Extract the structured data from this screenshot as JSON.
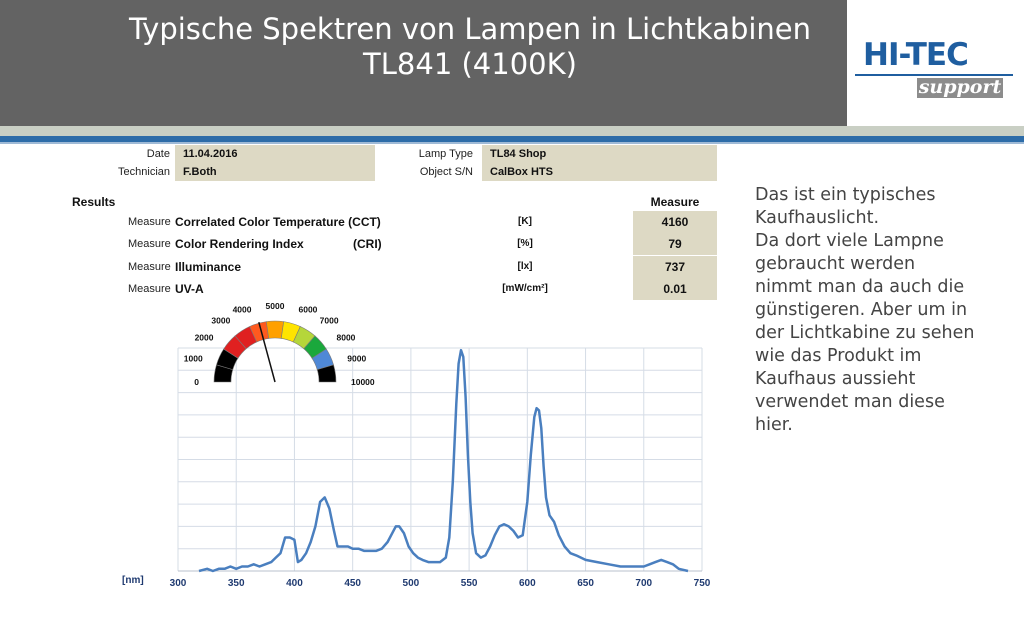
{
  "slide": {
    "title_line1": "Typische Spektren von Lampen in Lichtkabinen",
    "title_line2": "TL841 (4100K)",
    "logo_text": "HI-TEC",
    "logo_subtext": "support",
    "description": [
      "Das ist ein typisches",
      "Kaufhauslicht.",
      "Da dort viele Lampne",
      "gebraucht werden",
      "nimmt man da auch die",
      "günstigeren. Aber um in",
      "der Lichtkabine zu sehen",
      "wie das Produkt im",
      "Kaufhaus aussieht",
      "verwendet man diese",
      "hier."
    ]
  },
  "report": {
    "date_label": "Date",
    "date_value": "11.04.2016",
    "technician_label": "Technician",
    "technician_value": "F.Both",
    "lamp_type_label": "Lamp Type",
    "lamp_type_value": "TL84 Shop",
    "object_label": "Object S/N",
    "object_value": "CalBox HTS",
    "results_label": "Results",
    "measure_header": "Measure",
    "rows": [
      {
        "label": "Measure",
        "name": "Correlated Color Temperature (CCT)",
        "unit": "[K]",
        "value": "4160"
      },
      {
        "label": "Measure",
        "name": "Color Rendering Index",
        "name_suffix": "(CRI)",
        "unit": "[%]",
        "value": "79"
      },
      {
        "label": "Measure",
        "name": "Illuminance",
        "unit": "[lx]",
        "value": "737"
      },
      {
        "label": "Measure",
        "name": "UV-A",
        "unit": "[mW/cm²]",
        "value": "0.01"
      }
    ]
  },
  "gauge": {
    "tick_labels": [
      "0",
      "1000",
      "2000",
      "3000",
      "4000",
      "5000",
      "6000",
      "7000",
      "8000",
      "9000",
      "10000"
    ],
    "needle_value": 4160,
    "min": 0,
    "max": 10000,
    "segment_colors": [
      "#000000",
      "#000000",
      "#e02020",
      "#e02020",
      "#ff5a1f",
      "#ffa000",
      "#ffe400",
      "#b5d63a",
      "#1aa83c",
      "#4f88d6",
      "#000000"
    ]
  },
  "chart_data": {
    "type": "line",
    "xlabel": "[nm]",
    "ylabel": "",
    "title": "",
    "xlim": [
      300,
      750
    ],
    "ylim": [
      0,
      1
    ],
    "xticks": [
      300,
      350,
      400,
      450,
      500,
      550,
      600,
      650,
      700,
      750
    ],
    "grid": true,
    "line_color": "#4a7fbf",
    "series": [
      {
        "x": [
          318,
          325,
          330,
          335,
          340,
          345,
          350,
          355,
          360,
          365,
          370,
          375,
          380,
          384,
          388,
          392,
          396,
          400,
          403,
          406,
          410,
          414,
          418,
          422,
          426,
          430,
          434,
          437,
          440,
          443,
          446,
          450,
          455,
          460,
          465,
          470,
          475,
          480,
          484,
          487,
          490,
          494,
          498,
          502,
          506,
          510,
          515,
          520,
          525,
          530,
          533,
          536,
          539,
          541,
          543,
          545,
          547,
          549,
          551,
          553,
          556,
          560,
          564,
          568,
          572,
          576,
          580,
          584,
          588,
          592,
          596,
          600,
          603,
          606,
          608,
          610,
          612,
          614,
          616,
          619,
          623,
          627,
          632,
          637,
          642,
          650,
          660,
          670,
          680,
          690,
          700,
          705,
          710,
          715,
          720,
          725,
          730,
          738
        ],
        "y": [
          0.0,
          0.01,
          0.0,
          0.01,
          0.01,
          0.02,
          0.01,
          0.02,
          0.02,
          0.03,
          0.02,
          0.03,
          0.04,
          0.06,
          0.08,
          0.15,
          0.15,
          0.14,
          0.04,
          0.05,
          0.08,
          0.13,
          0.2,
          0.31,
          0.33,
          0.28,
          0.18,
          0.11,
          0.11,
          0.11,
          0.11,
          0.1,
          0.1,
          0.09,
          0.09,
          0.09,
          0.1,
          0.13,
          0.17,
          0.2,
          0.2,
          0.17,
          0.11,
          0.08,
          0.06,
          0.05,
          0.04,
          0.04,
          0.04,
          0.06,
          0.15,
          0.4,
          0.75,
          0.93,
          0.99,
          0.96,
          0.78,
          0.52,
          0.31,
          0.17,
          0.08,
          0.06,
          0.07,
          0.11,
          0.16,
          0.2,
          0.21,
          0.2,
          0.18,
          0.15,
          0.16,
          0.31,
          0.52,
          0.69,
          0.73,
          0.72,
          0.64,
          0.47,
          0.33,
          0.25,
          0.22,
          0.16,
          0.11,
          0.08,
          0.07,
          0.05,
          0.04,
          0.03,
          0.02,
          0.02,
          0.02,
          0.03,
          0.04,
          0.05,
          0.04,
          0.03,
          0.01,
          0.0
        ]
      }
    ]
  }
}
